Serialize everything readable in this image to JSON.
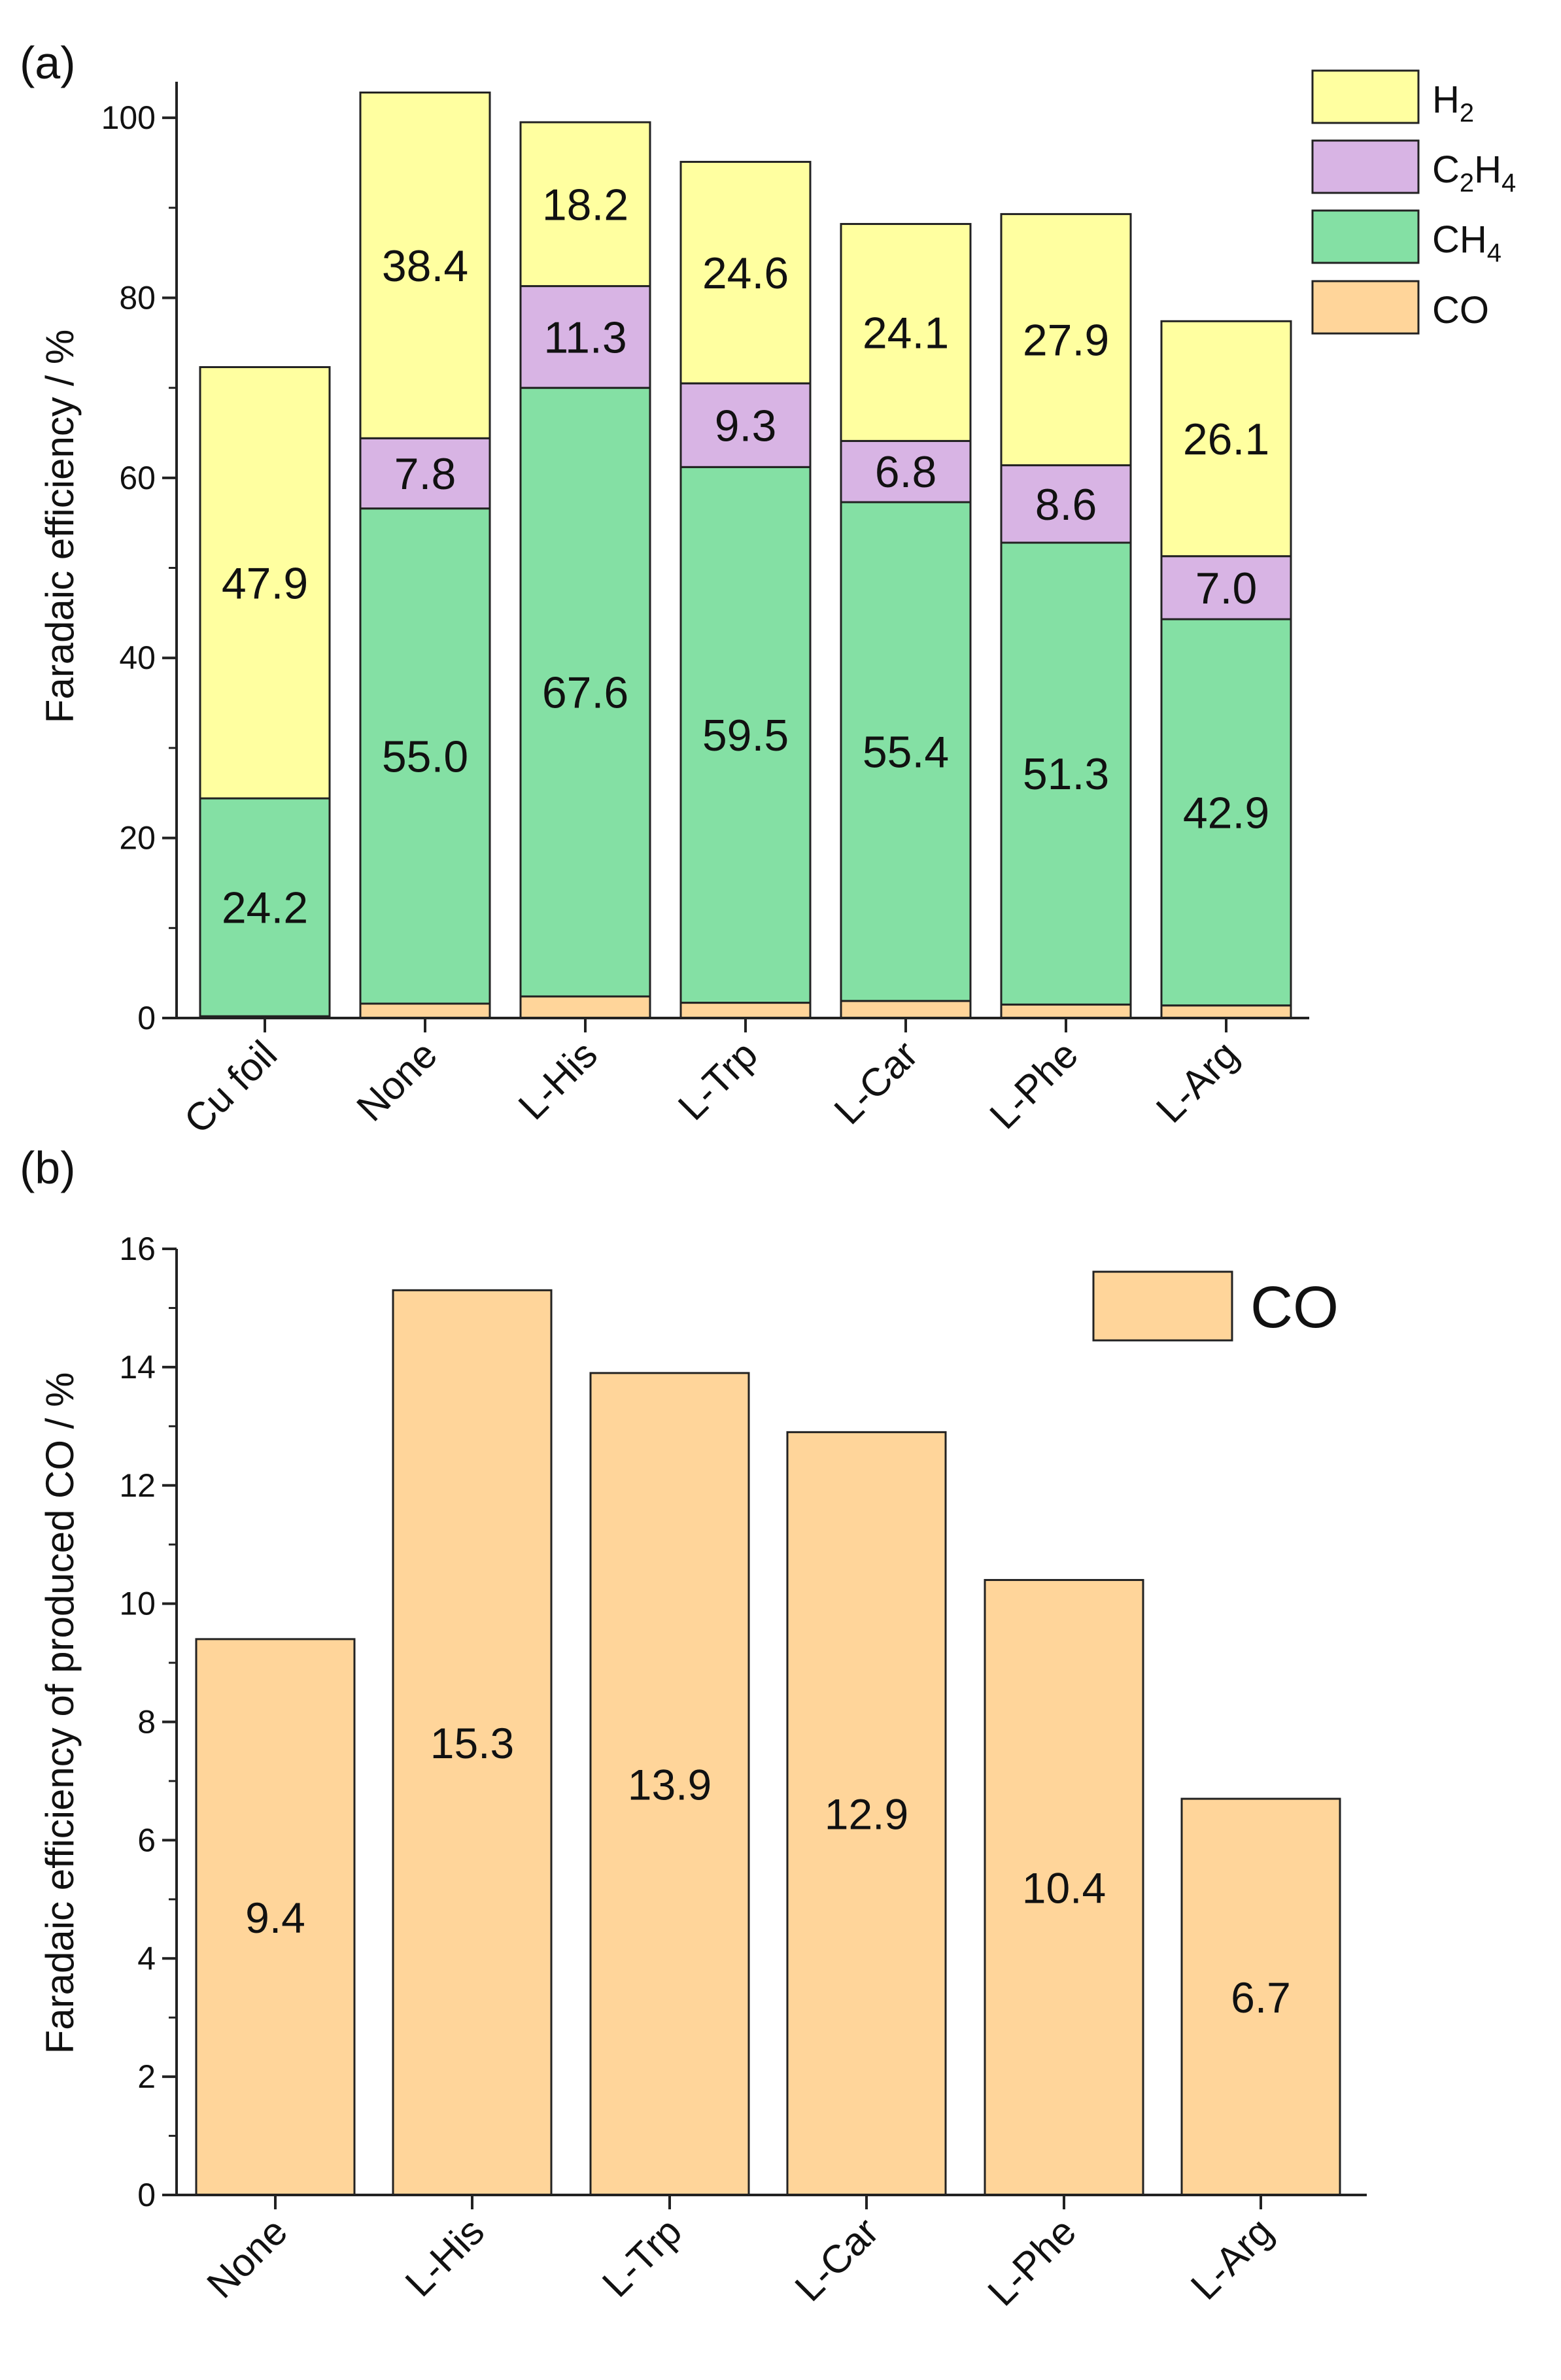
{
  "colors": {
    "H2": "#ffffa0",
    "C2H4": "#d8b4e4",
    "CH4": "#84e0a4",
    "CO": "#ffd59a",
    "stroke": "#222222"
  },
  "chart_data": [
    {
      "type": "bar",
      "stacked": true,
      "panel_label": "(a)",
      "ylabel": "Faradaic efficiency / %",
      "xlabel": "",
      "ylim": [
        0,
        104
      ],
      "yticks": [
        0,
        20,
        40,
        60,
        80,
        100
      ],
      "categories": [
        "Cu foil",
        "None",
        "L-His",
        "L-Trp",
        "L-Car",
        "L-Phe",
        "L-Arg"
      ],
      "legend_position": "top-right",
      "legend": [
        {
          "key": "H2",
          "base": "H",
          "sub": "2",
          "base2": "",
          "sub2": ""
        },
        {
          "key": "C2H4",
          "base": "C",
          "sub": "2",
          "base2": "H",
          "sub2": "4"
        },
        {
          "key": "CH4",
          "base": "CH",
          "sub": "4",
          "base2": "",
          "sub2": ""
        },
        {
          "key": "CO",
          "base": "CO",
          "sub": "",
          "base2": "",
          "sub2": ""
        }
      ],
      "series": [
        {
          "name": "CO",
          "values": [
            0.2,
            1.6,
            2.4,
            1.7,
            1.9,
            1.5,
            1.4
          ],
          "labels": [
            "",
            "",
            "",
            "",
            "",
            "",
            ""
          ]
        },
        {
          "name": "CH4",
          "values": [
            24.2,
            55.0,
            67.6,
            59.5,
            55.4,
            51.3,
            42.9
          ],
          "labels": [
            "24.2",
            "55.0",
            "67.6",
            "59.5",
            "55.4",
            "51.3",
            "42.9"
          ]
        },
        {
          "name": "C2H4",
          "values": [
            0,
            7.8,
            11.3,
            9.3,
            6.8,
            8.6,
            7.0
          ],
          "labels": [
            "",
            "7.8",
            "11.3",
            "9.3",
            "6.8",
            "8.6",
            "7.0"
          ]
        },
        {
          "name": "H2",
          "values": [
            47.9,
            38.4,
            18.2,
            24.6,
            24.1,
            27.9,
            26.1
          ],
          "labels": [
            "47.9",
            "38.4",
            "18.2",
            "24.6",
            "24.1",
            "27.9",
            "26.1"
          ]
        }
      ]
    },
    {
      "type": "bar",
      "panel_label": "(b)",
      "ylabel": "Faradaic efficiency of produced CO / %",
      "xlabel": "",
      "ylim": [
        0,
        16
      ],
      "yticks": [
        0,
        2,
        4,
        6,
        8,
        10,
        12,
        14,
        16
      ],
      "categories": [
        "None",
        "L-His",
        "L-Trp",
        "L-Car",
        "L-Phe",
        "L-Arg"
      ],
      "values": [
        9.4,
        15.3,
        13.9,
        12.9,
        10.4,
        6.7
      ],
      "labels": [
        "9.4",
        "15.3",
        "13.9",
        "12.9",
        "10.4",
        "6.7"
      ],
      "legend_position": "top-right",
      "legend": [
        "CO"
      ]
    }
  ]
}
